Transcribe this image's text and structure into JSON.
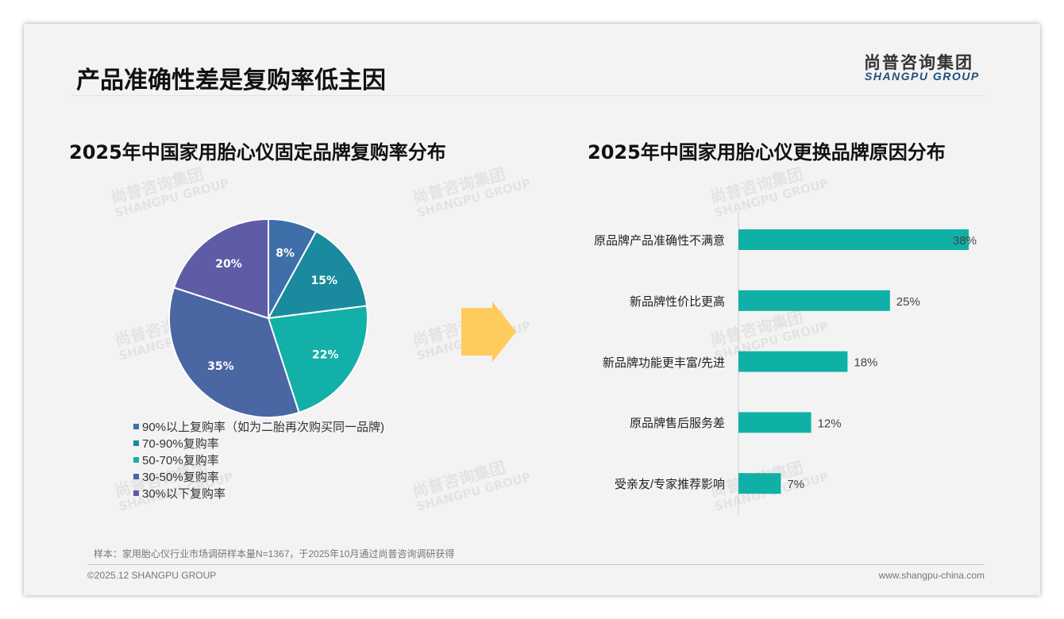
{
  "header": {
    "title": "产品准确性差是复购率低主因",
    "logo_cn": "尚普咨询集团",
    "logo_en": "SHANGPU GROUP"
  },
  "watermark": {
    "cn": "尚普咨询集团",
    "en": "SHANGPU GROUP"
  },
  "chart_data": [
    {
      "type": "pie",
      "title": "2025年中国家用胎心仪固定品牌复购率分布",
      "labels": [
        "90%以上复购率（如为二胎再次购买同一品牌)",
        "70-90%复购率",
        "50-70%复购率",
        "30-50%复购率",
        "30%以下复购率"
      ],
      "values": [
        8,
        15,
        22,
        35,
        20
      ],
      "value_labels": [
        "8%",
        "15%",
        "22%",
        "35%",
        "20%"
      ],
      "colors": [
        "#3F6FA8",
        "#1A8A9E",
        "#12B0A8",
        "#4A66A3",
        "#5E5CA6"
      ],
      "legend_position": "bottom"
    },
    {
      "type": "bar",
      "orientation": "horizontal",
      "title": "2025年中国家用胎心仪更换品牌原因分布",
      "categories": [
        "原品牌产品准确性不满意",
        "新品牌性价比更高",
        "新品牌功能更丰富/先进",
        "原品牌售后服务差",
        "受亲友/专家推荐影响"
      ],
      "values": [
        38,
        25,
        18,
        12,
        7
      ],
      "value_labels": [
        "38%",
        "25%",
        "18%",
        "12%",
        "7%"
      ],
      "color": "#0FB0A6",
      "xlim": [
        0,
        40
      ]
    }
  ],
  "footer": {
    "note": "样本：家用胎心仪行业市场调研样本量N=1367，于2025年10月通过尚普咨询调研获得",
    "copyright": "©2025.12 SHANGPU GROUP",
    "website": "www.shangpu-china.com"
  }
}
